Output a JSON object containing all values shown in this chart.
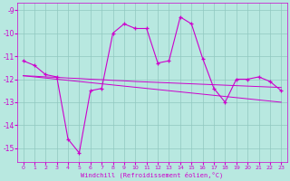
{
  "xlabel": "Windchill (Refroidissement éolien,°C)",
  "background_color": "#b8e8e0",
  "grid_color": "#90c8c0",
  "line_color": "#cc00cc",
  "xlim": [
    -0.5,
    23.5
  ],
  "ylim": [
    -15.6,
    -8.7
  ],
  "yticks": [
    -9,
    -10,
    -11,
    -12,
    -13,
    -14,
    -15
  ],
  "xticks": [
    0,
    1,
    2,
    3,
    4,
    5,
    6,
    7,
    8,
    9,
    10,
    11,
    12,
    13,
    14,
    15,
    16,
    17,
    18,
    19,
    20,
    21,
    22,
    23
  ],
  "main_y": [
    -11.2,
    -11.4,
    -11.8,
    -11.9,
    -14.6,
    -15.2,
    -12.5,
    -12.4,
    -10.0,
    -9.6,
    -9.8,
    -9.8,
    -11.3,
    -11.2,
    -9.3,
    -9.6,
    -11.1,
    -12.4,
    -13.0,
    -12.0,
    -12.0,
    -11.9,
    -12.1,
    -12.5
  ],
  "line2_y": [
    -11.85,
    -11.9,
    -11.95,
    -12.0,
    -12.05,
    -12.1,
    -12.15,
    -12.2,
    -12.25,
    -12.3,
    -12.35,
    -12.4,
    -12.45,
    -12.5,
    -12.55,
    -12.6,
    -12.65,
    -12.7,
    -12.75,
    -12.8,
    -12.85,
    -12.9,
    -12.95,
    -13.0
  ],
  "line3_y": [
    -11.85,
    -11.87,
    -11.9,
    -11.92,
    -11.95,
    -11.97,
    -12.0,
    -12.02,
    -12.05,
    -12.07,
    -12.1,
    -12.12,
    -12.14,
    -12.16,
    -12.18,
    -12.2,
    -12.22,
    -12.24,
    -12.26,
    -12.28,
    -12.3,
    -12.32,
    -12.34,
    -12.36
  ]
}
